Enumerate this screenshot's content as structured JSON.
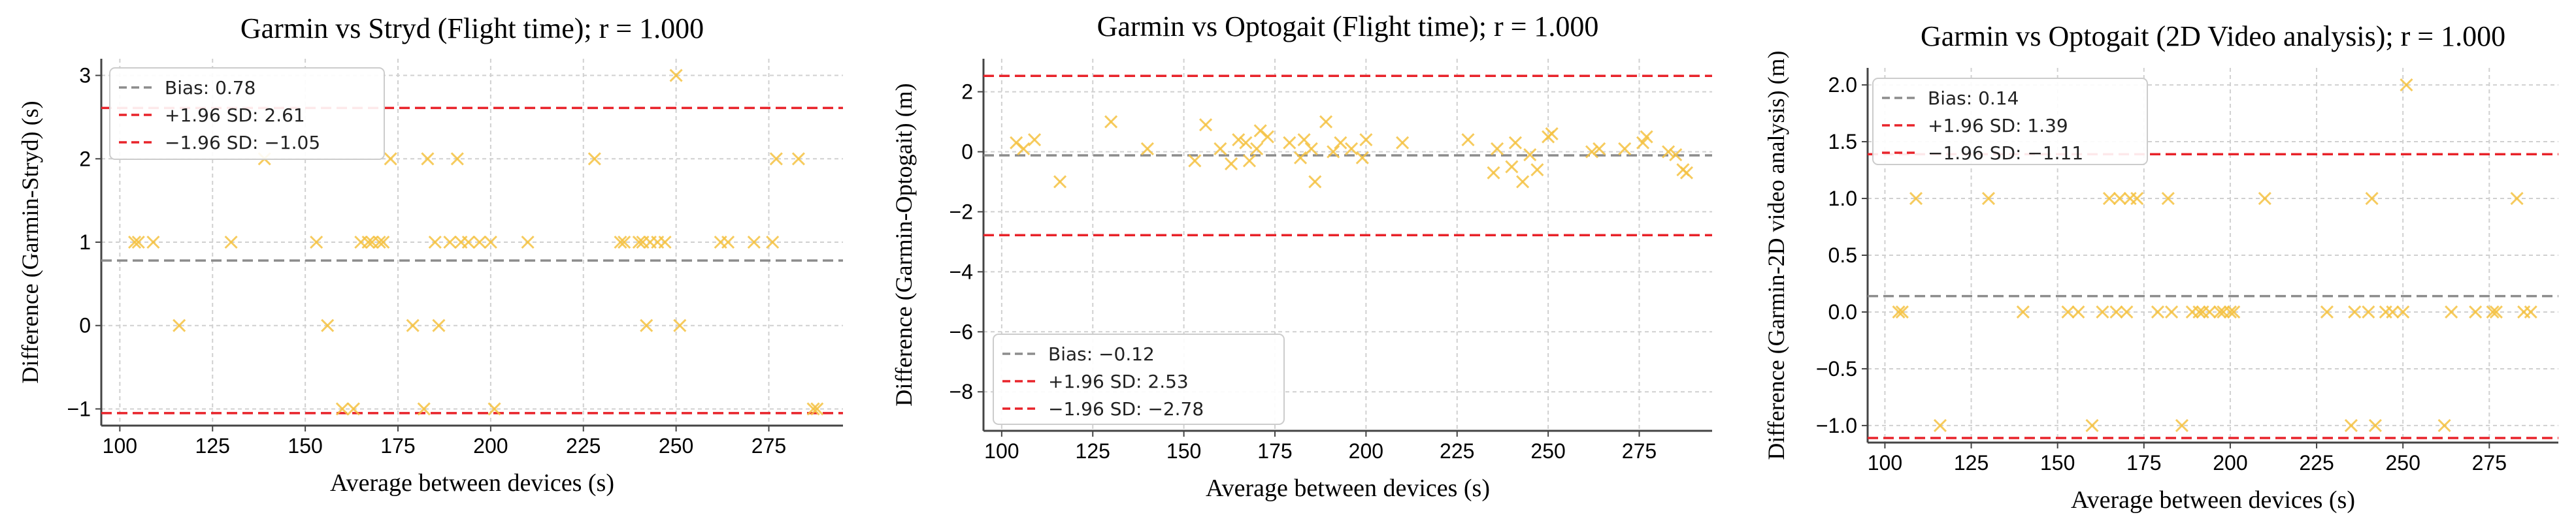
{
  "chart_data": [
    {
      "type": "scatter",
      "title": "Garmin vs Stryd (Flight time); r = 1.000",
      "xlabel": "Average between devices (s)",
      "ylabel": "Difference (Garmin-Stryd) (s)",
      "xlim": [
        95,
        295
      ],
      "ylim": [
        -1.2,
        3.2
      ],
      "xticks": [
        100,
        125,
        150,
        175,
        200,
        225,
        250,
        275
      ],
      "yticks": [
        -1,
        0,
        1,
        2,
        3
      ],
      "bias": 0.78,
      "upper_loa": 2.61,
      "lower_loa": -1.05,
      "legend": [
        "Bias: 0.78",
        "+1.96 SD: 2.61",
        "−1.96 SD: −1.05"
      ],
      "x": [
        104,
        105,
        109,
        116,
        130,
        139,
        153,
        156,
        160,
        163,
        165,
        167,
        168,
        170,
        171,
        173,
        179,
        182,
        183,
        185,
        186,
        189,
        191,
        192,
        194,
        197,
        200,
        201,
        210,
        228,
        235,
        236,
        240,
        241,
        242,
        243,
        245,
        247,
        250,
        251,
        262,
        264,
        271,
        276,
        277,
        283,
        287,
        288
      ],
      "y": [
        1,
        1,
        1,
        0,
        1,
        2,
        1,
        0,
        -1,
        -1,
        1,
        1,
        1,
        1,
        1,
        2,
        0,
        -1,
        2,
        1,
        0,
        1,
        2,
        1,
        1,
        1,
        1,
        -1,
        1,
        2,
        1,
        1,
        1,
        1,
        0,
        1,
        1,
        1,
        3,
        0,
        1,
        1,
        1,
        1,
        2,
        2,
        -1,
        -1
      ]
    },
    {
      "type": "scatter",
      "title": "Garmin vs Optogait (Flight time); r = 1.000",
      "xlabel": "Average between devices (s)",
      "ylabel": "Difference (Garmin-Optogait) (m)",
      "xlim": [
        95,
        295
      ],
      "ylim": [
        -9.3,
        3.1
      ],
      "xticks": [
        100,
        125,
        150,
        175,
        200,
        225,
        250,
        275
      ],
      "yticks": [
        -8,
        -6,
        -4,
        -2,
        0,
        2
      ],
      "bias": -0.12,
      "upper_loa": 2.53,
      "lower_loa": -2.78,
      "legend": [
        "Bias: −0.12",
        "+1.96 SD: 2.53",
        "−1.96 SD: −2.78"
      ],
      "x": [
        104,
        106,
        109,
        116,
        130,
        140,
        153,
        156,
        160,
        163,
        165,
        167,
        168,
        170,
        171,
        173,
        179,
        182,
        183,
        185,
        186,
        189,
        191,
        193,
        196,
        199,
        200,
        210,
        228,
        235,
        236,
        240,
        241,
        243,
        245,
        247,
        250,
        251,
        262,
        264,
        271,
        276,
        277,
        283,
        285,
        287,
        288
      ],
      "y": [
        0.3,
        0.1,
        0.4,
        -1.0,
        1.0,
        0.1,
        -0.3,
        0.9,
        0.1,
        -0.4,
        0.4,
        0.3,
        -0.3,
        0.1,
        0.7,
        0.5,
        0.3,
        -0.2,
        0.4,
        0.1,
        -1.0,
        1.0,
        0.0,
        0.3,
        0.1,
        -0.2,
        0.4,
        0.3,
        0.4,
        -0.7,
        0.1,
        -0.5,
        0.3,
        -1.0,
        -0.1,
        -0.6,
        0.5,
        0.6,
        0.0,
        0.1,
        0.1,
        0.3,
        0.5,
        0.0,
        -0.1,
        -0.6,
        -0.7
      ]
    },
    {
      "type": "scatter",
      "title": "Garmin vs Optogait (2D Video analysis); r = 1.000",
      "xlabel": "Average between devices (s)",
      "ylabel": "Difference (Garmin-2D video analysis) (m)",
      "xlim": [
        95,
        295
      ],
      "ylim": [
        -1.15,
        2.15
      ],
      "xticks": [
        100,
        125,
        150,
        175,
        200,
        225,
        250,
        275
      ],
      "yticks": [
        -1.0,
        -0.5,
        0.0,
        0.5,
        1.0,
        1.5,
        2.0
      ],
      "bias": 0.14,
      "upper_loa": 1.39,
      "lower_loa": -1.11,
      "legend": [
        "Bias: 0.14",
        "+1.96 SD: 1.39",
        "−1.96 SD: −1.11"
      ],
      "x": [
        104,
        105,
        109,
        116,
        130,
        140,
        153,
        156,
        160,
        163,
        165,
        167,
        168,
        170,
        171,
        173,
        179,
        182,
        183,
        186,
        189,
        191,
        192,
        194,
        197,
        198,
        200,
        201,
        210,
        228,
        235,
        236,
        240,
        241,
        242,
        245,
        247,
        250,
        251,
        262,
        264,
        271,
        276,
        277,
        283,
        285,
        287
      ],
      "y": [
        0,
        0,
        1,
        -1,
        1,
        0,
        0,
        0,
        -1,
        0,
        1,
        0,
        1,
        0,
        1,
        1,
        0,
        1,
        0,
        -1,
        0,
        0,
        0,
        0,
        0,
        0,
        0,
        0,
        1,
        0,
        -1,
        0,
        0,
        1,
        -1,
        0,
        0,
        0,
        2,
        -1,
        0,
        0,
        0,
        0,
        1,
        0,
        0
      ]
    }
  ]
}
